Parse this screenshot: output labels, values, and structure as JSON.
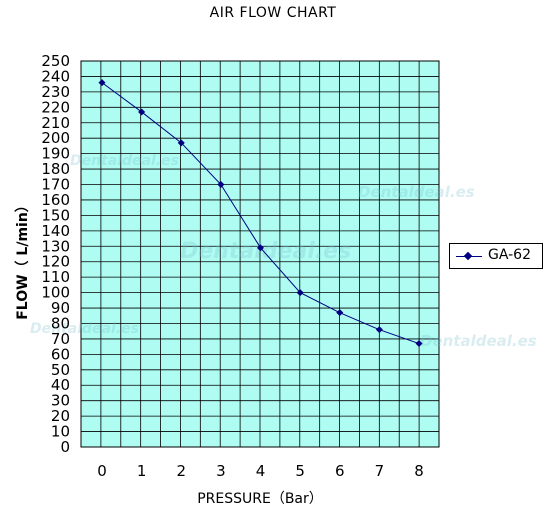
{
  "chart_data": {
    "type": "line",
    "title": "AIR FLOW CHART",
    "xlabel": "PRESSURE（Bar）",
    "ylabel": "FLOW（ L/min）",
    "x": [
      0,
      1,
      2,
      3,
      4,
      5,
      6,
      7,
      8
    ],
    "series": [
      {
        "name": "GA-62",
        "values": [
          236,
          217,
          197,
          170,
          129,
          100,
          87,
          76,
          67
        ]
      }
    ],
    "xlim": [
      0,
      8
    ],
    "ylim": [
      0,
      250
    ],
    "x_ticks": [
      "0",
      "1",
      "2",
      "3",
      "4",
      "5",
      "6",
      "7",
      "8"
    ],
    "y_ticks": [
      "0",
      "10",
      "20",
      "30",
      "40",
      "50",
      "60",
      "70",
      "80",
      "90",
      "100",
      "110",
      "120",
      "130",
      "140",
      "150",
      "160",
      "170",
      "180",
      "190",
      "200",
      "210",
      "220",
      "230",
      "240",
      "250"
    ],
    "grid": true,
    "legend_position": "right",
    "colors": {
      "plot_background": "#aefcf2",
      "grid": "#000000",
      "series": "#000080"
    }
  },
  "watermarks": [
    "Dentaldeal.es",
    "Dentaldeal.es",
    "Dentaldeal.es",
    "Dentaldeal.es",
    "Dentaldeal.es"
  ]
}
